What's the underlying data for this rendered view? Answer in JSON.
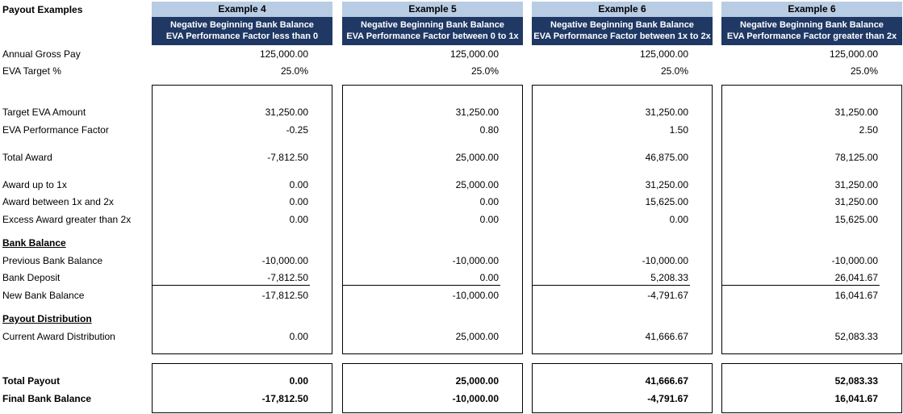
{
  "title": "Payout Examples",
  "labels": {
    "annual_gross_pay": "Annual Gross Pay",
    "eva_target_pct": "EVA Target %",
    "target_eva_amount": "Target EVA Amount",
    "eva_performance_factor": "EVA Performance Factor",
    "total_award": "Total Award",
    "award_up_to_1x": "Award up to 1x",
    "award_between_1x_2x": "Award between 1x and 2x",
    "excess_award_gt_2x": "Excess Award greater than 2x",
    "bank_balance_section": "Bank Balance",
    "previous_bank_balance": "Previous Bank Balance",
    "bank_deposit": "Bank Deposit",
    "new_bank_balance": "New Bank Balance",
    "payout_distribution_section": "Payout Distribution",
    "current_award_distribution": "Current Award Distribution",
    "total_payout": "Total Payout",
    "final_bank_balance": "Final Bank Balance"
  },
  "examples": [
    {
      "title": "Example 4",
      "subtitle1": "Negative Beginning Bank Balance",
      "subtitle2": "EVA Performance Factor less than 0",
      "annual_gross_pay": "125,000.00",
      "eva_target_pct": "25.0%",
      "target_eva_amount": "31,250.00",
      "eva_performance_factor": "-0.25",
      "total_award": "-7,812.50",
      "award_up_to_1x": "0.00",
      "award_between_1x_2x": "0.00",
      "excess_award_gt_2x": "0.00",
      "previous_bank_balance": "-10,000.00",
      "bank_deposit": "-7,812.50",
      "new_bank_balance": "-17,812.50",
      "current_award_distribution": "0.00",
      "total_payout": "0.00",
      "final_bank_balance": "-17,812.50"
    },
    {
      "title": "Example 5",
      "subtitle1": "Negative Beginning Bank Balance",
      "subtitle2": "EVA Performance Factor between 0 to 1x",
      "annual_gross_pay": "125,000.00",
      "eva_target_pct": "25.0%",
      "target_eva_amount": "31,250.00",
      "eva_performance_factor": "0.80",
      "total_award": "25,000.00",
      "award_up_to_1x": "25,000.00",
      "award_between_1x_2x": "0.00",
      "excess_award_gt_2x": "0.00",
      "previous_bank_balance": "-10,000.00",
      "bank_deposit": "0.00",
      "new_bank_balance": "-10,000.00",
      "current_award_distribution": "25,000.00",
      "total_payout": "25,000.00",
      "final_bank_balance": "-10,000.00"
    },
    {
      "title": "Example 6",
      "subtitle1": "Negative Beginning Bank Balance",
      "subtitle2": "EVA Performance Factor between 1x to 2x",
      "annual_gross_pay": "125,000.00",
      "eva_target_pct": "25.0%",
      "target_eva_amount": "31,250.00",
      "eva_performance_factor": "1.50",
      "total_award": "46,875.00",
      "award_up_to_1x": "31,250.00",
      "award_between_1x_2x": "15,625.00",
      "excess_award_gt_2x": "0.00",
      "previous_bank_balance": "-10,000.00",
      "bank_deposit": "5,208.33",
      "new_bank_balance": "-4,791.67",
      "current_award_distribution": "41,666.67",
      "total_payout": "41,666.67",
      "final_bank_balance": "-4,791.67"
    },
    {
      "title": "Example 6",
      "subtitle1": "Negative Beginning Bank Balance",
      "subtitle2": "EVA Performance Factor greater than 2x",
      "annual_gross_pay": "125,000.00",
      "eva_target_pct": "25.0%",
      "target_eva_amount": "31,250.00",
      "eva_performance_factor": "2.50",
      "total_award": "78,125.00",
      "award_up_to_1x": "31,250.00",
      "award_between_1x_2x": "31,250.00",
      "excess_award_gt_2x": "15,625.00",
      "previous_bank_balance": "-10,000.00",
      "bank_deposit": "26,041.67",
      "new_bank_balance": "16,041.67",
      "current_award_distribution": "52,083.33",
      "total_payout": "52,083.33",
      "final_bank_balance": "16,041.67"
    }
  ]
}
